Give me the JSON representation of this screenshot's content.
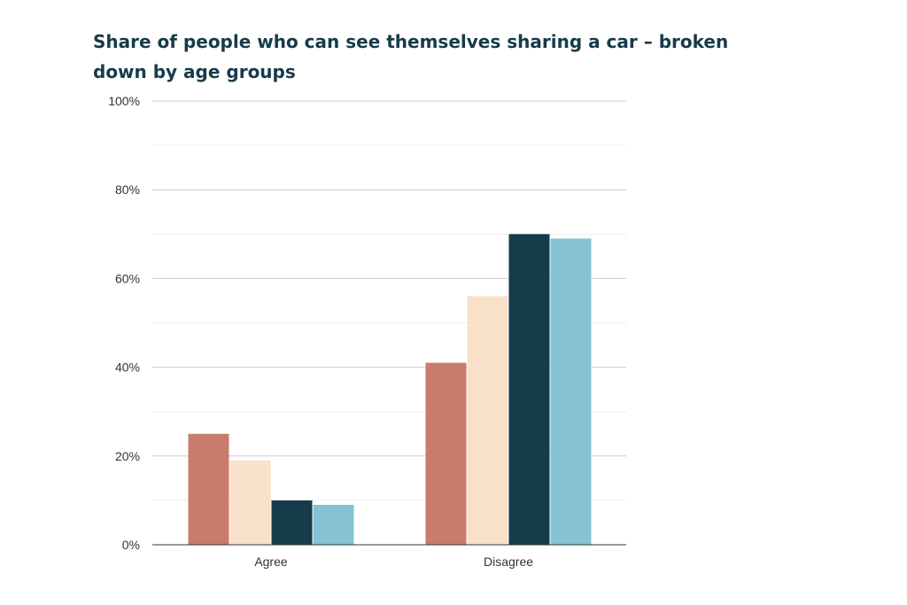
{
  "chart_data": {
    "type": "bar",
    "title": "Share of people who can see themselves sharing a car – broken down by age groups",
    "categories": [
      "Agree",
      "Disagree"
    ],
    "series": [
      {
        "values": [
          25,
          41
        ],
        "color": "#c97b6c"
      },
      {
        "values": [
          19,
          56
        ],
        "color": "#f9e0c8"
      },
      {
        "values": [
          10,
          70
        ],
        "color": "#163b4b"
      },
      {
        "values": [
          9,
          69
        ],
        "color": "#85c3d4"
      }
    ],
    "ylim": [
      0,
      100
    ],
    "yticks": [
      0,
      20,
      40,
      60,
      80,
      100
    ],
    "ytick_labels": [
      "0%",
      "20%",
      "40%",
      "60%",
      "80%",
      "100%"
    ],
    "grid": true,
    "legend": "none"
  }
}
